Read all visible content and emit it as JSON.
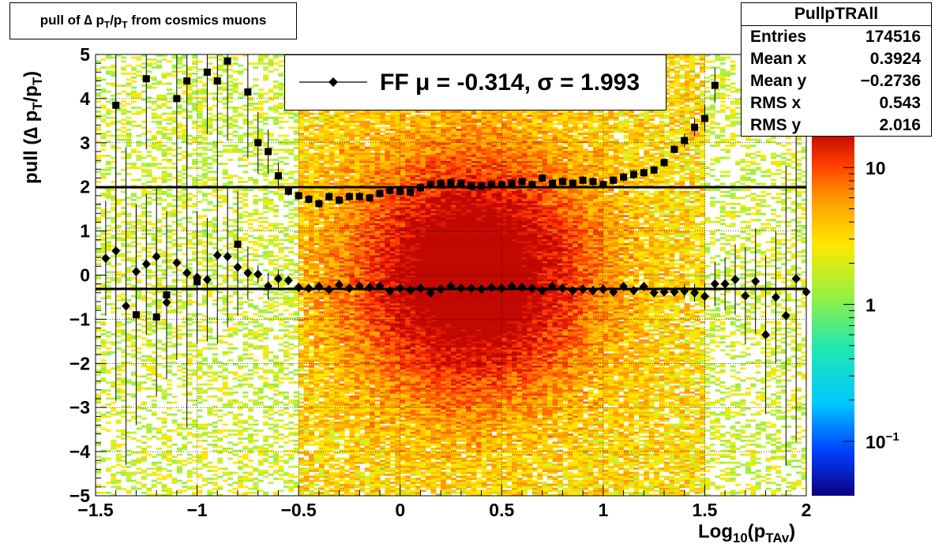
{
  "title": "pull of ∆ p",
  "title_sub1": "T",
  "title_mid": "/p",
  "title_sub2": "T",
  "title_end": " from cosmics muons",
  "stats": {
    "name": "PullpTRAll",
    "rows": [
      {
        "label": "Entries",
        "value": "174516"
      },
      {
        "label": "Mean x",
        "value": "0.3924"
      },
      {
        "label": "Mean y",
        "value": "−0.2736"
      },
      {
        "label": "RMS x",
        "value": "0.543"
      },
      {
        "label": "RMS y",
        "value": "2.016"
      }
    ]
  },
  "legend": {
    "label": "FF μ = -0.314, σ =   1.993"
  },
  "axis": {
    "ylabel_a": "pull (∆ p",
    "ylabel_s1": "T",
    "ylabel_b": "/p",
    "ylabel_s2": "T",
    "ylabel_c": ")",
    "xlabel_a": "Log",
    "xlabel_s1": "10",
    "xlabel_b": "(p",
    "xlabel_s2": "TAv",
    "xlabel_c": ")"
  },
  "colors": {
    "fit_line": "#000000",
    "marker": "#000000"
  },
  "chart_data": {
    "type": "heatmap",
    "xlim": [
      -1.5,
      2
    ],
    "ylim": [
      -5,
      5
    ],
    "log_z": true,
    "grid": true,
    "xticks": [
      -1.5,
      -1,
      -0.5,
      0,
      0.5,
      1,
      1.5,
      2
    ],
    "xtick_labels": [
      "−1.5",
      "−1",
      "−0.5",
      "0",
      "0.5",
      "1",
      "1.5",
      "2"
    ],
    "yticks": [
      -5,
      -4,
      -3,
      -2,
      -1,
      0,
      1,
      2,
      3,
      4,
      5
    ],
    "ytick_labels": [
      "−5",
      "−4",
      "−3",
      "−2",
      "−1",
      "0",
      "1",
      "2",
      "3",
      "4",
      "5"
    ],
    "colorbar_ticks": [
      0.1,
      1,
      10
    ],
    "colorbar_labels": [
      "10",
      "1",
      "10"
    ],
    "colorbar_exponents": [
      "−1",
      "",
      ""
    ],
    "fit_lines": [
      {
        "y": -0.314
      },
      {
        "y": 1.993
      }
    ],
    "series": [
      {
        "marker": "diamond",
        "x": [
          -1.45,
          -1.4,
          -1.35,
          -1.3,
          -1.25,
          -1.2,
          -1.15,
          -1.1,
          -1.05,
          -1,
          -0.95,
          -0.9,
          -0.85,
          -0.8,
          -0.75,
          -0.7,
          -0.65,
          -0.6,
          -0.55,
          -0.5,
          -0.45,
          -0.4,
          -0.35,
          -0.3,
          -0.25,
          -0.2,
          -0.15,
          -0.1,
          -0.05,
          0,
          0.05,
          0.1,
          0.15,
          0.2,
          0.25,
          0.3,
          0.35,
          0.4,
          0.45,
          0.5,
          0.55,
          0.6,
          0.65,
          0.7,
          0.75,
          0.8,
          0.85,
          0.9,
          0.95,
          1,
          1.05,
          1.1,
          1.15,
          1.2,
          1.25,
          1.3,
          1.35,
          1.4,
          1.45,
          1.5,
          1.55,
          1.6,
          1.65,
          1.7,
          1.75,
          1.8,
          1.85,
          1.9,
          1.95,
          2
        ],
        "y": [
          0.38,
          0.55,
          -0.7,
          0.08,
          0.25,
          0.42,
          -0.62,
          0.28,
          0.05,
          -0.05,
          -0.1,
          0.45,
          0.42,
          0.18,
          0.05,
          0.02,
          -0.25,
          -0.08,
          -0.12,
          -0.28,
          -0.3,
          -0.26,
          -0.33,
          -0.22,
          -0.3,
          -0.25,
          -0.28,
          -0.25,
          -0.36,
          -0.3,
          -0.34,
          -0.3,
          -0.4,
          -0.32,
          -0.25,
          -0.3,
          -0.3,
          -0.32,
          -0.28,
          -0.3,
          -0.25,
          -0.28,
          -0.3,
          -0.35,
          -0.25,
          -0.3,
          -0.35,
          -0.32,
          -0.35,
          -0.32,
          -0.38,
          -0.26,
          -0.35,
          -0.26,
          -0.4,
          -0.38,
          -0.38,
          -0.36,
          -0.4,
          -0.48,
          -0.2,
          -0.2,
          -0.1,
          -0.47,
          -0.14,
          -1.35,
          -0.5,
          -0.92,
          -0.08,
          -0.38
        ],
        "err": [
          1.3,
          3.4,
          3.6,
          1.5,
          1.6,
          1.6,
          1.5,
          2.2,
          3.5,
          1.5,
          1.4,
          2.0,
          1.6,
          1.1,
          0.6,
          0.2,
          0.3,
          0.2,
          0.1,
          0.1,
          0.1,
          0.1,
          0.1,
          0.1,
          0.1,
          0.1,
          0.1,
          0.1,
          0.1,
          0.1,
          0.1,
          0.1,
          0.1,
          0.1,
          0.1,
          0.1,
          0.1,
          0.1,
          0.1,
          0.1,
          0.1,
          0.1,
          0.1,
          0.1,
          0.1,
          0.1,
          0.1,
          0.1,
          0.1,
          0.1,
          0.1,
          0.1,
          0.1,
          0.1,
          0.1,
          0.1,
          0.1,
          0.15,
          0.2,
          0.3,
          0.5,
          0.6,
          0.8,
          1.1,
          1.2,
          1.8,
          1.5,
          3.4,
          3.7,
          3.8
        ]
      },
      {
        "marker": "square",
        "x": [
          -1.4,
          -1.3,
          -1.25,
          -1.2,
          -1.15,
          -1.1,
          -1.05,
          -1,
          -0.95,
          -0.9,
          -0.85,
          -0.8,
          -0.75,
          -0.7,
          -0.65,
          -0.6,
          -0.55,
          -0.5,
          -0.45,
          -0.4,
          -0.35,
          -0.3,
          -0.25,
          -0.2,
          -0.15,
          -0.1,
          -0.05,
          0,
          0.05,
          0.1,
          0.15,
          0.2,
          0.25,
          0.3,
          0.35,
          0.4,
          0.45,
          0.5,
          0.55,
          0.6,
          0.65,
          0.7,
          0.75,
          0.8,
          0.85,
          0.9,
          0.95,
          1,
          1.05,
          1.1,
          1.15,
          1.2,
          1.25,
          1.3,
          1.35,
          1.4,
          1.45,
          1.5,
          1.55
        ],
        "y": [
          3.85,
          -0.9,
          4.45,
          -0.95,
          -0.45,
          4.0,
          4.4,
          -0.15,
          4.6,
          4.4,
          4.85,
          0.7,
          4.15,
          3.0,
          2.8,
          2.25,
          1.9,
          1.8,
          1.72,
          1.62,
          1.78,
          1.7,
          1.78,
          1.78,
          1.75,
          1.85,
          1.92,
          1.9,
          1.88,
          1.98,
          2.05,
          2.08,
          2.1,
          2.08,
          2.02,
          2.02,
          2.05,
          2.05,
          2.08,
          2.12,
          2.05,
          2.2,
          2.08,
          2.12,
          2.08,
          2.15,
          2.12,
          2.05,
          2.15,
          2.22,
          2.28,
          2.32,
          2.38,
          2.55,
          2.85,
          3.05,
          3.35,
          3.55,
          4.3
        ],
        "err": [
          3.6,
          2.5,
          1.6,
          1.8,
          1.9,
          2.5,
          2.0,
          1.3,
          1.4,
          2.0,
          1.8,
          1.2,
          1.5,
          0.7,
          0.5,
          0.3,
          0.1,
          0.1,
          0.1,
          0.1,
          0.1,
          0.1,
          0.1,
          0.1,
          0.1,
          0.1,
          0.1,
          0.1,
          0.1,
          0.1,
          0.1,
          0.1,
          0.1,
          0.1,
          0.1,
          0.1,
          0.1,
          0.1,
          0.1,
          0.1,
          0.1,
          0.1,
          0.1,
          0.1,
          0.1,
          0.1,
          0.1,
          0.1,
          0.1,
          0.1,
          0.1,
          0.1,
          0.1,
          0.1,
          0.1,
          0.15,
          0.2,
          0.3,
          0.4
        ]
      }
    ]
  }
}
